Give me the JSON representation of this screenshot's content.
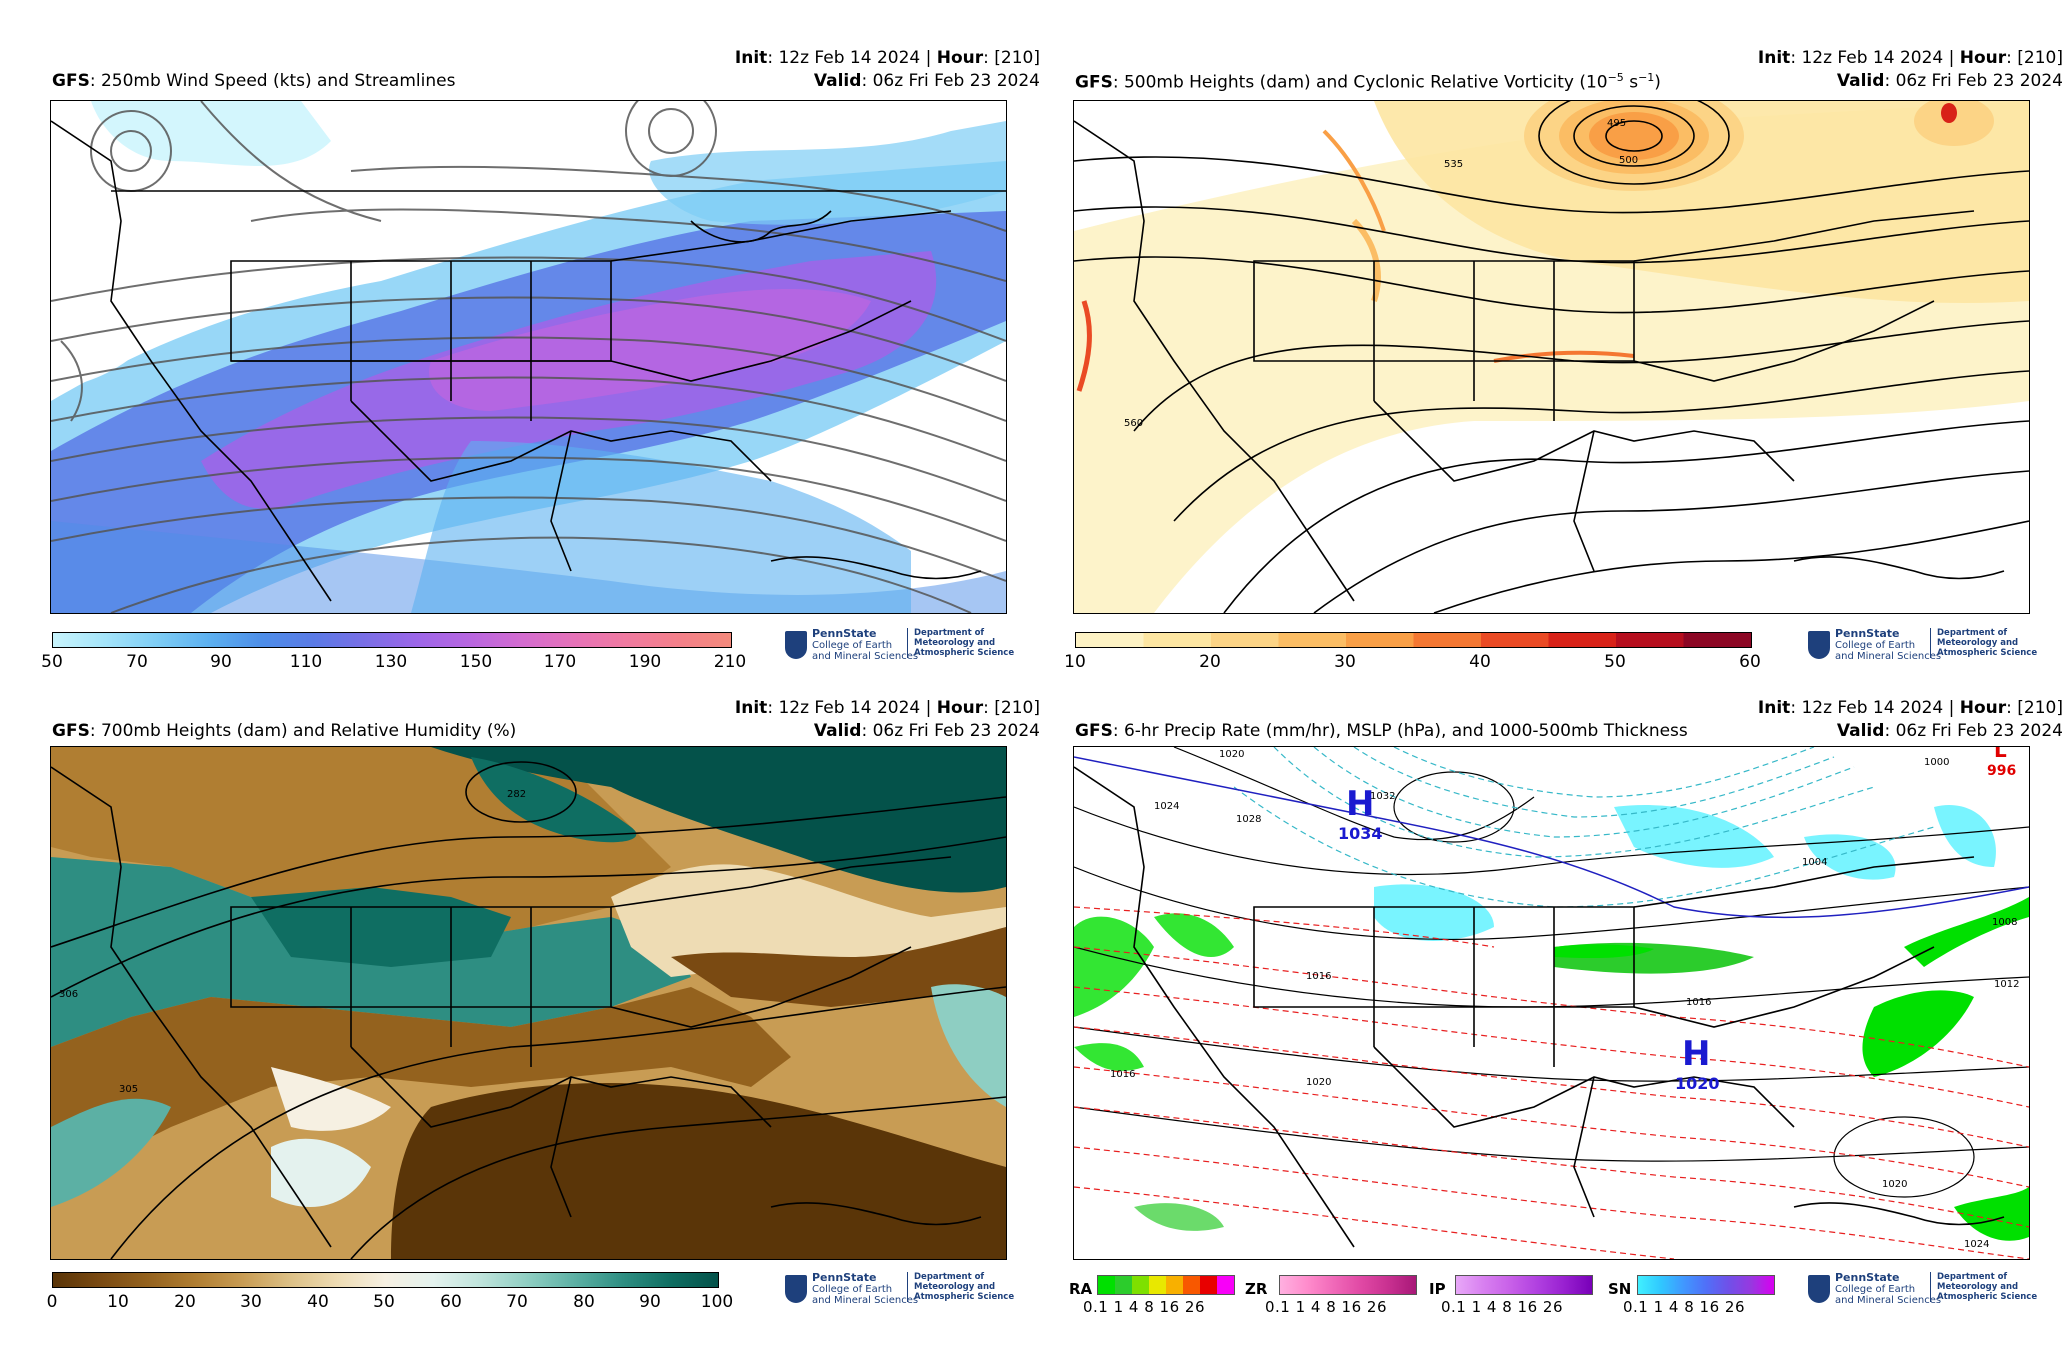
{
  "panels": [
    {
      "init_label": "Init",
      "init_value": ": 12z Feb 14 2024 | ",
      "hour_label": "Hour",
      "hour_value": ": [210]",
      "model": "GFS",
      "title": ": 250mb Wind Speed (kts) and Streamlines",
      "valid_label": "Valid",
      "valid_value": ": 06z Fri Feb 23 2024",
      "colorbar_ticks": [
        "50",
        "70",
        "90",
        "110",
        "130",
        "150",
        "170",
        "190",
        "210"
      ]
    },
    {
      "init_label": "Init",
      "init_value": ": 12z Feb 14 2024 | ",
      "hour_label": "Hour",
      "hour_value": ": [210]",
      "model": "GFS",
      "title": ": 500mb Heights (dam) and Cyclonic Relative Vorticity (10",
      "title_sup1": "−5",
      "title_mid": " s",
      "title_sup2": "−1",
      "title_end": ")",
      "valid_label": "Valid",
      "valid_value": ": 06z Fri Feb 23 2024",
      "colorbar_ticks": [
        "10",
        "20",
        "30",
        "40",
        "50",
        "60"
      ],
      "contour_labels": [
        "495",
        "500",
        "535",
        "560"
      ]
    },
    {
      "init_label": "Init",
      "init_value": ": 12z Feb 14 2024 | ",
      "hour_label": "Hour",
      "hour_value": ": [210]",
      "model": "GFS",
      "title": ": 700mb Heights (dam) and Relative Humidity (%)",
      "valid_label": "Valid",
      "valid_value": ": 06z Fri Feb 23 2024",
      "colorbar_ticks": [
        "0",
        "10",
        "20",
        "30",
        "40",
        "50",
        "60",
        "70",
        "80",
        "90",
        "100"
      ],
      "contour_labels": [
        "282",
        "306",
        "305"
      ]
    },
    {
      "init_label": "Init",
      "init_value": ": 12z Feb 14 2024 | ",
      "hour_label": "Hour",
      "hour_value": ": [210]",
      "model": "GFS",
      "title": ": 6-hr Precip Rate (mm/hr), MSLP (hPa), and 1000-500mb Thickness",
      "valid_label": "Valid",
      "valid_value": ": 06z Fri Feb 23 2024",
      "pressure_centers": [
        {
          "letter": "H",
          "value": "1034"
        },
        {
          "letter": "H",
          "value": "1020"
        },
        {
          "letter": "L",
          "value": "996"
        }
      ],
      "isobar_labels": [
        "1020",
        "1032",
        "1024",
        "1028",
        "1016",
        "1000",
        "1004",
        "1008",
        "1012",
        "1016",
        "1016",
        "1020",
        "1020",
        "1024"
      ],
      "precip_types": [
        {
          "label": "RA",
          "ticks": "0.1 1  4  8 16 26"
        },
        {
          "label": "ZR",
          "ticks": "0.1 1  4  8 16 26"
        },
        {
          "label": "IP",
          "ticks": "0.1 1  4  8 16 26"
        },
        {
          "label": "SN",
          "ticks": "0.1 1  4  8 16 26"
        }
      ]
    }
  ],
  "logo": {
    "name": "PennState",
    "line2": "College of Earth",
    "line3": "and Mineral Sciences",
    "dept1": "Department of",
    "dept2": "Meteorology and",
    "dept3": "Atmospheric Science"
  },
  "colors": {
    "wind": [
      "#c8f4fc",
      "#a4e4fa",
      "#7ecdf5",
      "#5cb0f0",
      "#4d8ee8",
      "#5a7ae6",
      "#7a6ee6",
      "#9d66e8",
      "#b866e0",
      "#d46cd0",
      "#e672b8",
      "#f07aa0",
      "#f4808a",
      "#f48a7c"
    ],
    "vort": [
      "#fdf2c4",
      "#fde6a2",
      "#fcd486",
      "#fbbd64",
      "#f99f46",
      "#f47732",
      "#ea4a24",
      "#d82218",
      "#b60e1e",
      "#8c0624"
    ],
    "rh": [
      "#5a3508",
      "#7a4a12",
      "#94621e",
      "#b07e32",
      "#c89c54",
      "#dcc086",
      "#eedcb4",
      "#f6f0e2",
      "#e4f2ee",
      "#bfe4dc",
      "#8ecec2",
      "#5cb0a4",
      "#2e8e82",
      "#0f6e62",
      "#04524a"
    ],
    "ra": [
      "#00e000",
      "#2ccc2c",
      "#7ee000",
      "#e8e800",
      "#f8b000",
      "#f85800",
      "#e80000",
      "#f800f8"
    ],
    "zr": [
      "#ffb0e0",
      "#ff8ccc",
      "#f068b8",
      "#e048a4",
      "#c83090",
      "#a81878"
    ],
    "ip": [
      "#e8a8f8",
      "#d880f0",
      "#c860e8",
      "#b040e0",
      "#9820d0",
      "#7800b8"
    ],
    "sn": [
      "#40f0ff",
      "#30c8ff",
      "#4098ff",
      "#5070f8",
      "#7050e8",
      "#9838e0",
      "#d800f0"
    ]
  }
}
